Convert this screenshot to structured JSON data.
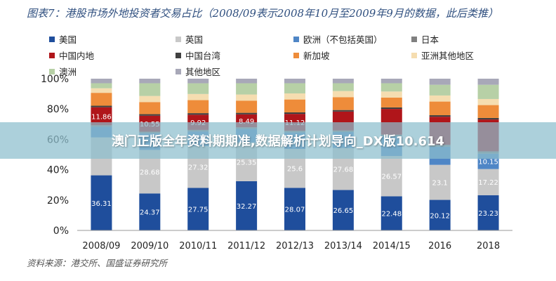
{
  "header": {
    "title": "图表7：港股市场外地投资者交易占比（2008/09表示2008年10月至2009年9月的数据，此后类推）"
  },
  "banner": {
    "text": "澳门正版全年资料期期准,数据解析计划导向_DX版10.614"
  },
  "footer": {
    "source": "资料来源：港交所、国盛证券研究所"
  },
  "colors": {
    "美国": "#1f4e9c",
    "英国": "#c8c8c8",
    "欧洲（不包括英国）": "#4f86c6",
    "日本": "#808080",
    "中国内地": "#b0151a",
    "中国台湾": "#404040",
    "新加坡": "#ee8c3a",
    "亚洲其他地区": "#f5ddb0",
    "澳洲": "#b7d0a6",
    "其他地区": "#a8a8b8"
  },
  "chart_data": {
    "type": "bar",
    "stacked": true,
    "categories": [
      "2008/09",
      "2009/10",
      "2010/11",
      "2011/12",
      "2012/13",
      "2013/14",
      "2014/15",
      "2016",
      "2018"
    ],
    "ylim": [
      0,
      100
    ],
    "yticks": [
      "0%",
      "20%",
      "40%",
      "60%",
      "80%",
      "100%"
    ],
    "legend": [
      "美国",
      "英国",
      "欧洲（不包括英国）",
      "日本",
      "中国内地",
      "中国台湾",
      "新加坡",
      "亚洲其他地区",
      "澳洲",
      "其他地区"
    ],
    "series": [
      {
        "name": "美国",
        "values": [
          36.31,
          24.37,
          27.75,
          32.27,
          28.07,
          26.65,
          22.48,
          20.12,
          23.23
        ],
        "labels": [
          "36.31",
          "24.37",
          "27.75",
          "32.27",
          "28.07",
          "26.65",
          "22.48",
          "20.12",
          "23.23"
        ]
      },
      {
        "name": "英国",
        "values": [
          25,
          28.68,
          27.32,
          25.35,
          25.6,
          27.68,
          26.57,
          23.1,
          17.22
        ],
        "labels": [
          "",
          "28.68",
          "27.32",
          "25.35",
          "25.6",
          "27.68",
          "26.57",
          "23.1",
          "17.22"
        ]
      },
      {
        "name": "欧洲（不包括英国）",
        "values": [
          7,
          11,
          9.5,
          9,
          11,
          10.5,
          13,
          12,
          10.15
        ],
        "labels": [
          "",
          "",
          "",
          "",
          "",
          "",
          "",
          "",
          "10.15"
        ]
      },
      {
        "name": "日本",
        "values": [
          1,
          1,
          1,
          1,
          1,
          1,
          1,
          1.2,
          1.5
        ],
        "labels": [
          "",
          "",
          "",
          "",
          "",
          "",
          "",
          "",
          ""
        ]
      },
      {
        "name": "中国内地",
        "values": [
          11.86,
          10.55,
          9.92,
          8.49,
          11.12,
          12.5,
          17,
          18.5,
          21
        ],
        "labels": [
          "11.86",
          "10.55",
          "9.92",
          "8.49",
          "11.12",
          "",
          "",
          "",
          ""
        ]
      },
      {
        "name": "中国台湾",
        "values": [
          1,
          1,
          1,
          1,
          1,
          1,
          1,
          1,
          1
        ],
        "labels": [
          "",
          "",
          "",
          "",
          "",
          "",
          "",
          "",
          ""
        ]
      },
      {
        "name": "新加坡",
        "values": [
          8.5,
          8,
          8.5,
          8,
          8.5,
          8.5,
          6.5,
          9,
          8.5
        ],
        "labels": [
          "",
          "",
          "",
          "",
          "",
          "",
          "",
          "",
          ""
        ]
      },
      {
        "name": "亚洲其他地区",
        "values": [
          3,
          4,
          4,
          4,
          4,
          4,
          4,
          4,
          4
        ],
        "labels": [
          "",
          "",
          "",
          "",
          "",
          "",
          "",
          "",
          ""
        ]
      },
      {
        "name": "澳洲",
        "values": [
          3.33,
          8.4,
          7,
          7.39,
          6.71,
          5.17,
          5.45,
          7.08,
          9.4
        ],
        "labels": [
          "",
          "",
          "",
          "",
          "",
          "",
          "",
          "",
          ""
        ]
      },
      {
        "name": "其他地区",
        "values": [
          3,
          3,
          3,
          3,
          3,
          3,
          3,
          4,
          4
        ],
        "labels": [
          "",
          "",
          "",
          "",
          "",
          "",
          "",
          "",
          ""
        ]
      }
    ]
  }
}
